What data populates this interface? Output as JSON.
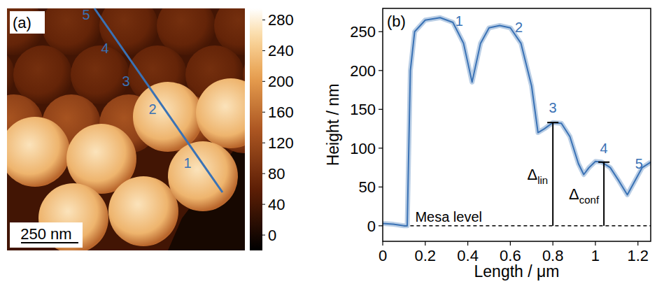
{
  "chart_data": [
    {
      "type": "image",
      "panel_label": "(a)",
      "scale_bar": "250 nm",
      "profile_labels": [
        "1",
        "2",
        "3",
        "4",
        "5"
      ],
      "layer_heights": [
        268,
        133,
        82,
        0
      ],
      "colorbar": {
        "range": [
          -20,
          295
        ],
        "ticks": [
          0,
          40,
          80,
          120,
          160,
          200,
          240,
          280
        ]
      }
    },
    {
      "type": "line",
      "panel_label": "(b)",
      "x_label": "Length / μm",
      "y_label": "Height / nm",
      "xlim": [
        0,
        1.26
      ],
      "ylim": [
        -20,
        280
      ],
      "xticks": [
        0,
        0.2,
        0.4,
        0.6,
        0.8,
        1,
        1.2
      ],
      "yticks": [
        0,
        50,
        100,
        150,
        200,
        250
      ],
      "color": "#3a72b5",
      "x": [
        0,
        0.05,
        0.1,
        0.115,
        0.13,
        0.15,
        0.2,
        0.27,
        0.33,
        0.38,
        0.42,
        0.46,
        0.5,
        0.55,
        0.6,
        0.65,
        0.7,
        0.73,
        0.76,
        0.8,
        0.84,
        0.88,
        0.92,
        0.945,
        0.97,
        1.0,
        1.03,
        1.07,
        1.11,
        1.15,
        1.18,
        1.22,
        1.26
      ],
      "values": [
        3,
        2,
        0,
        0,
        200,
        250,
        265,
        268,
        262,
        235,
        185,
        235,
        255,
        258,
        255,
        235,
        180,
        120,
        125,
        133,
        132,
        115,
        80,
        66,
        75,
        83,
        82,
        75,
        58,
        40,
        55,
        75,
        82
      ],
      "annotations": [
        {
          "text": "1",
          "x": 0.36,
          "y": 264
        },
        {
          "text": "2",
          "x": 0.64,
          "y": 256
        },
        {
          "text": "3",
          "x": 0.8,
          "y": 152
        },
        {
          "text": "4",
          "x": 1.04,
          "y": 100
        },
        {
          "text": "5",
          "x": 1.205,
          "y": 80
        }
      ],
      "bars": [
        {
          "label": "Δ",
          "subscript": "lin",
          "x": 0.8,
          "y": 133
        },
        {
          "label": "Δ",
          "subscript": "conf",
          "x": 1.04,
          "y": 82
        }
      ],
      "mesa_level": {
        "text": "Mesa level",
        "x": 0.1,
        "y": 0
      }
    }
  ]
}
